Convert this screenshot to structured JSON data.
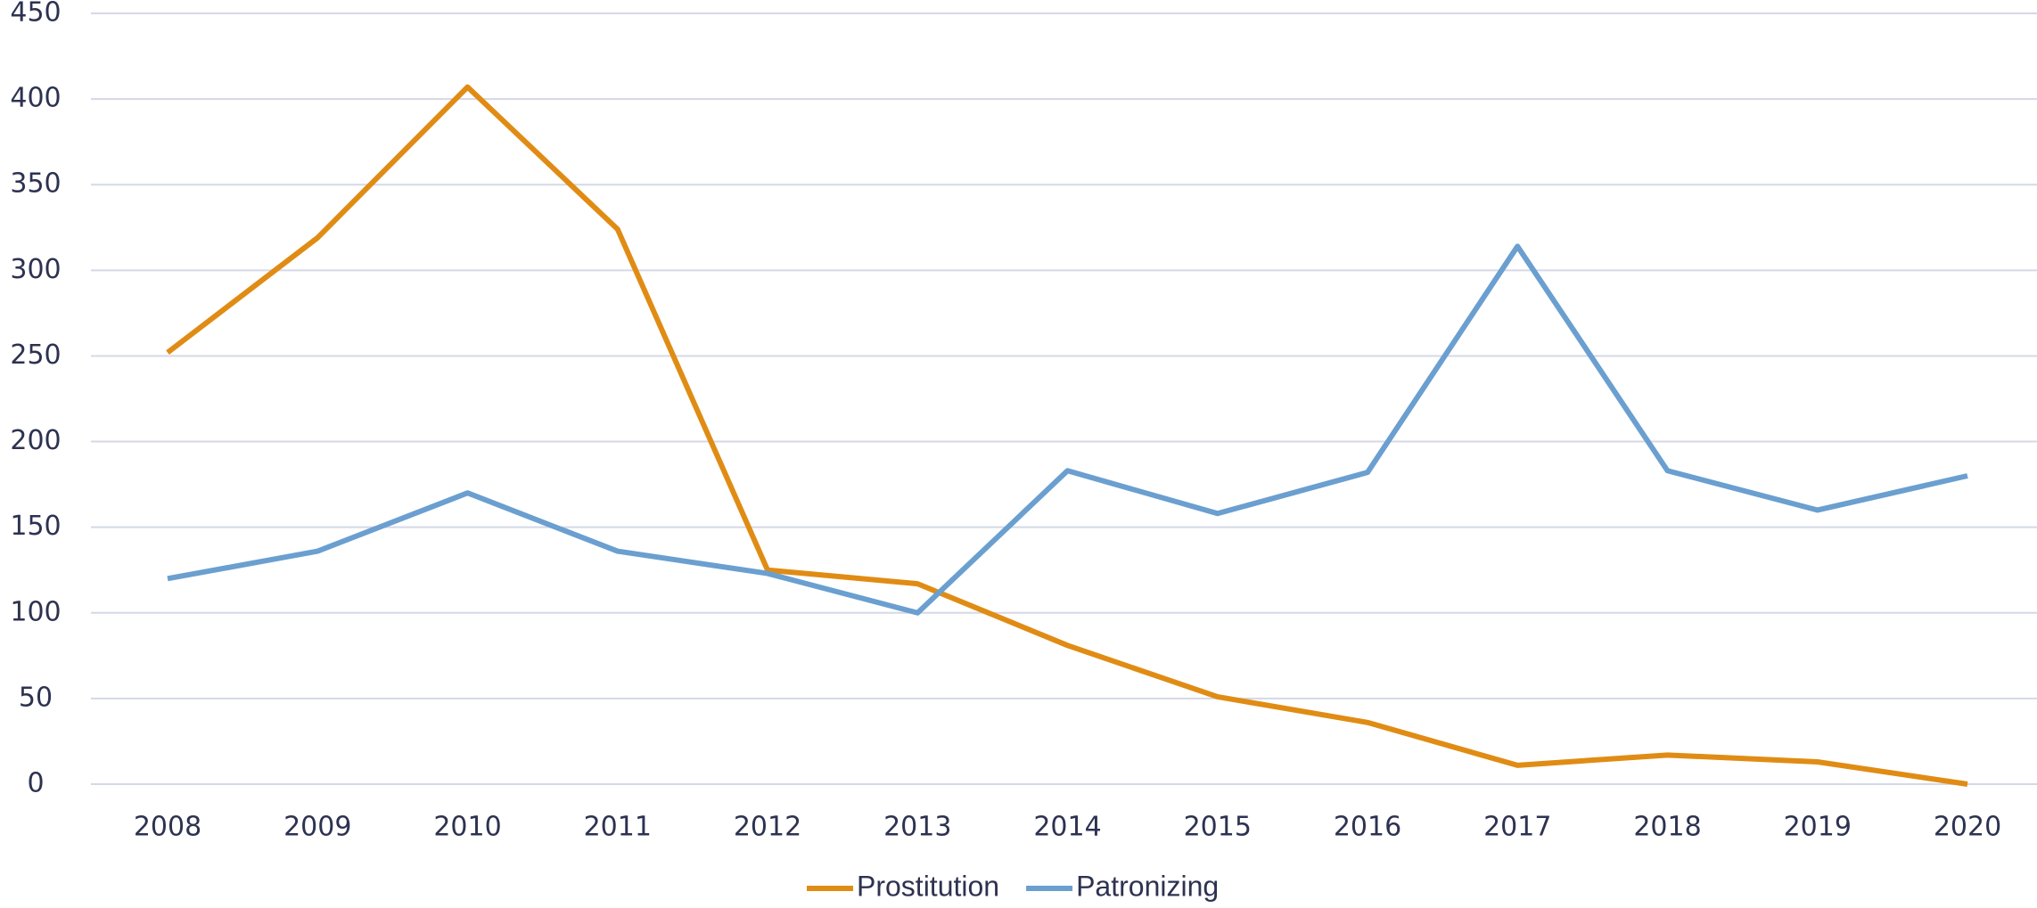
{
  "chart_data": {
    "type": "line",
    "categories": [
      "2008",
      "2009",
      "2010",
      "2011",
      "2012",
      "2013",
      "2014",
      "2015",
      "2016",
      "2017",
      "2018",
      "2019",
      "2020"
    ],
    "series": [
      {
        "name": "Prostitution",
        "color": "#e08c14",
        "values": [
          252,
          319,
          407,
          324,
          125,
          117,
          81,
          51,
          36,
          11,
          17,
          13,
          0
        ]
      },
      {
        "name": "Patronizing",
        "color": "#6a9fd0",
        "values": [
          120,
          136,
          170,
          136,
          123,
          100,
          183,
          158,
          182,
          314,
          183,
          160,
          180
        ]
      }
    ],
    "ylim": [
      0,
      450
    ],
    "yticks": [
      0,
      50,
      100,
      150,
      200,
      250,
      300,
      350,
      400,
      450
    ],
    "grid": true,
    "legend": "bottom"
  }
}
